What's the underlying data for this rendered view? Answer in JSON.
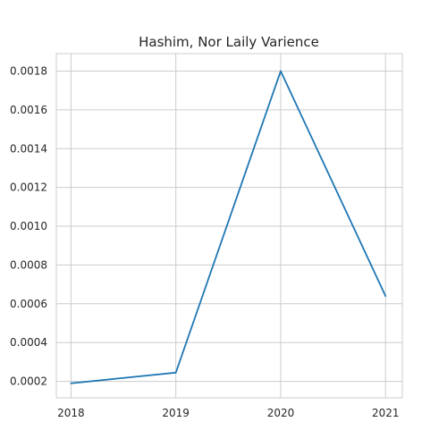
{
  "chart_data": {
    "type": "line",
    "title": "Hashim, Nor Laily Varience",
    "xlabel": "",
    "ylabel": "",
    "x": [
      "2018",
      "2019",
      "2020",
      "2021"
    ],
    "series": [
      {
        "values": [
          0.00019,
          0.000245,
          0.0018,
          0.00064
        ],
        "color": "#1f77b4"
      }
    ],
    "xlim": [
      2017.86,
      2021.16
    ],
    "ylim": [
      0.000115,
      0.00189
    ],
    "yticks": [
      0.0002,
      0.0004,
      0.0006,
      0.0008,
      0.001,
      0.0012,
      0.0014,
      0.0016,
      0.0018
    ],
    "ytick_labels": [
      "0.0002",
      "0.0004",
      "0.0006",
      "0.0008",
      "0.0010",
      "0.0012",
      "0.0014",
      "0.0016",
      "0.0018"
    ],
    "grid": true,
    "legend": "none"
  }
}
